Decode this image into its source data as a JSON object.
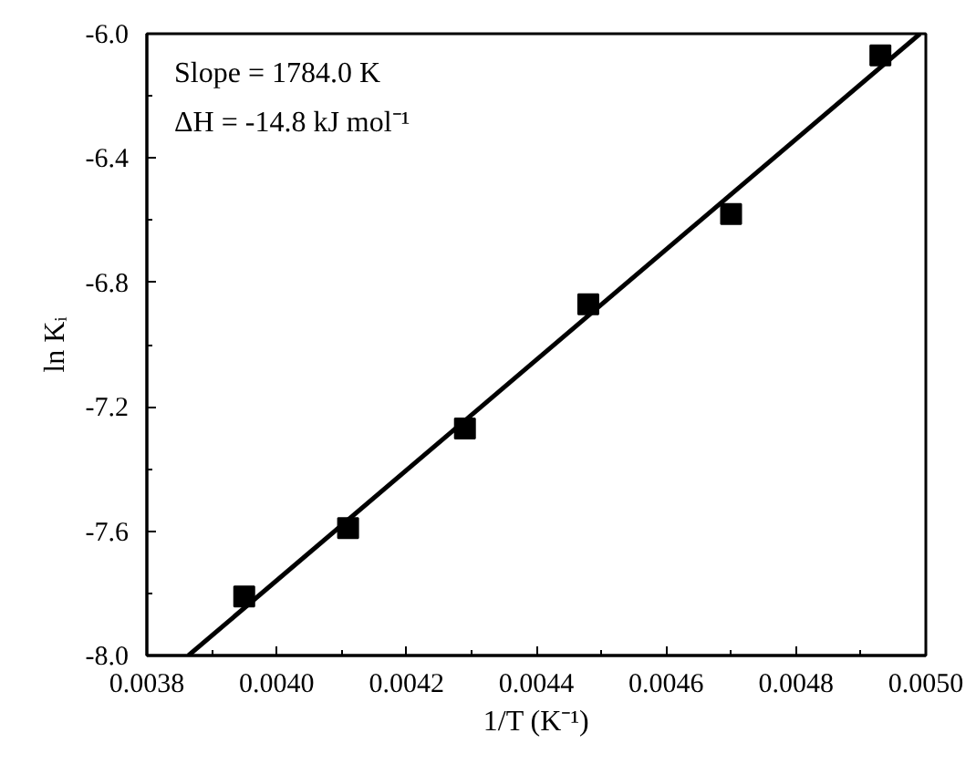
{
  "chart_data": {
    "type": "scatter",
    "xlabel": "1/T (K⁻¹)",
    "ylabel": "ln Kᵢ",
    "annotations": [
      "Slope = 1784.0 K",
      "ΔH = -14.8 kJ mol⁻¹"
    ],
    "xlim": [
      0.0038,
      0.005
    ],
    "ylim": [
      -8.0,
      -6.0
    ],
    "xticks": [
      {
        "value": 0.0038,
        "label": "0.0038"
      },
      {
        "value": 0.004,
        "label": "0.0040"
      },
      {
        "value": 0.0042,
        "label": "0.0042"
      },
      {
        "value": 0.0044,
        "label": "0.0044"
      },
      {
        "value": 0.0046,
        "label": "0.0046"
      },
      {
        "value": 0.0048,
        "label": "0.0048"
      },
      {
        "value": 0.005,
        "label": "0.0050"
      }
    ],
    "yticks": [
      {
        "value": -8.0,
        "label": "-8.0"
      },
      {
        "value": -7.6,
        "label": "-7.6"
      },
      {
        "value": -7.2,
        "label": "-7.2"
      },
      {
        "value": -6.8,
        "label": "-6.8"
      },
      {
        "value": -6.4,
        "label": "-6.4"
      },
      {
        "value": -6.0,
        "label": "-6.0"
      }
    ],
    "grid": false,
    "marker": "square",
    "series": [
      {
        "color": "#000000",
        "x": [
          0.00395,
          0.00411,
          0.00429,
          0.00448,
          0.0047,
          0.00493
        ],
        "values": [
          -7.81,
          -7.59,
          -7.27,
          -6.87,
          -6.58,
          -6.07
        ]
      },
      {
        "type": "line",
        "color": "#000000",
        "line_style": "solid",
        "marker": "none",
        "x": [
          0.003864,
          0.004991
        ],
        "values": [
          -8.0,
          -6.0
        ]
      }
    ]
  }
}
